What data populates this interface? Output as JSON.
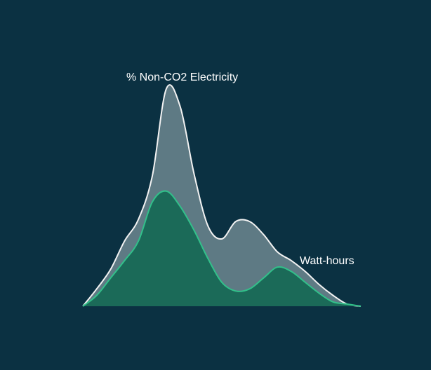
{
  "chart_data": {
    "type": "area",
    "title": "",
    "xlabel": "",
    "ylabel": "",
    "grid": false,
    "legend": "none",
    "x": [
      0,
      1,
      2,
      3,
      4,
      5,
      6,
      7,
      8,
      9,
      10,
      11,
      12,
      13,
      14,
      15,
      16,
      17,
      18,
      19,
      20
    ],
    "ylim": [
      0,
      1
    ],
    "series": [
      {
        "name": "% Non-CO2 Electricity",
        "color": "#5e7a84",
        "stroke": "#f2f2f2",
        "values": [
          0.0,
          0.08,
          0.17,
          0.3,
          0.4,
          0.6,
          1.0,
          0.92,
          0.61,
          0.37,
          0.31,
          0.39,
          0.39,
          0.33,
          0.25,
          0.21,
          0.16,
          0.1,
          0.05,
          0.01,
          0.0
        ]
      },
      {
        "name": "Watt-hours",
        "color": "#1b6a58",
        "stroke": "#32c08a",
        "values": [
          0.0,
          0.05,
          0.13,
          0.21,
          0.3,
          0.48,
          0.53,
          0.46,
          0.35,
          0.22,
          0.11,
          0.07,
          0.08,
          0.13,
          0.18,
          0.16,
          0.11,
          0.06,
          0.02,
          0.01,
          0.0
        ]
      }
    ]
  },
  "series_labels": {
    "non_co2": "% Non-CO2 Electricity",
    "watt_hours": "Watt-hours"
  }
}
